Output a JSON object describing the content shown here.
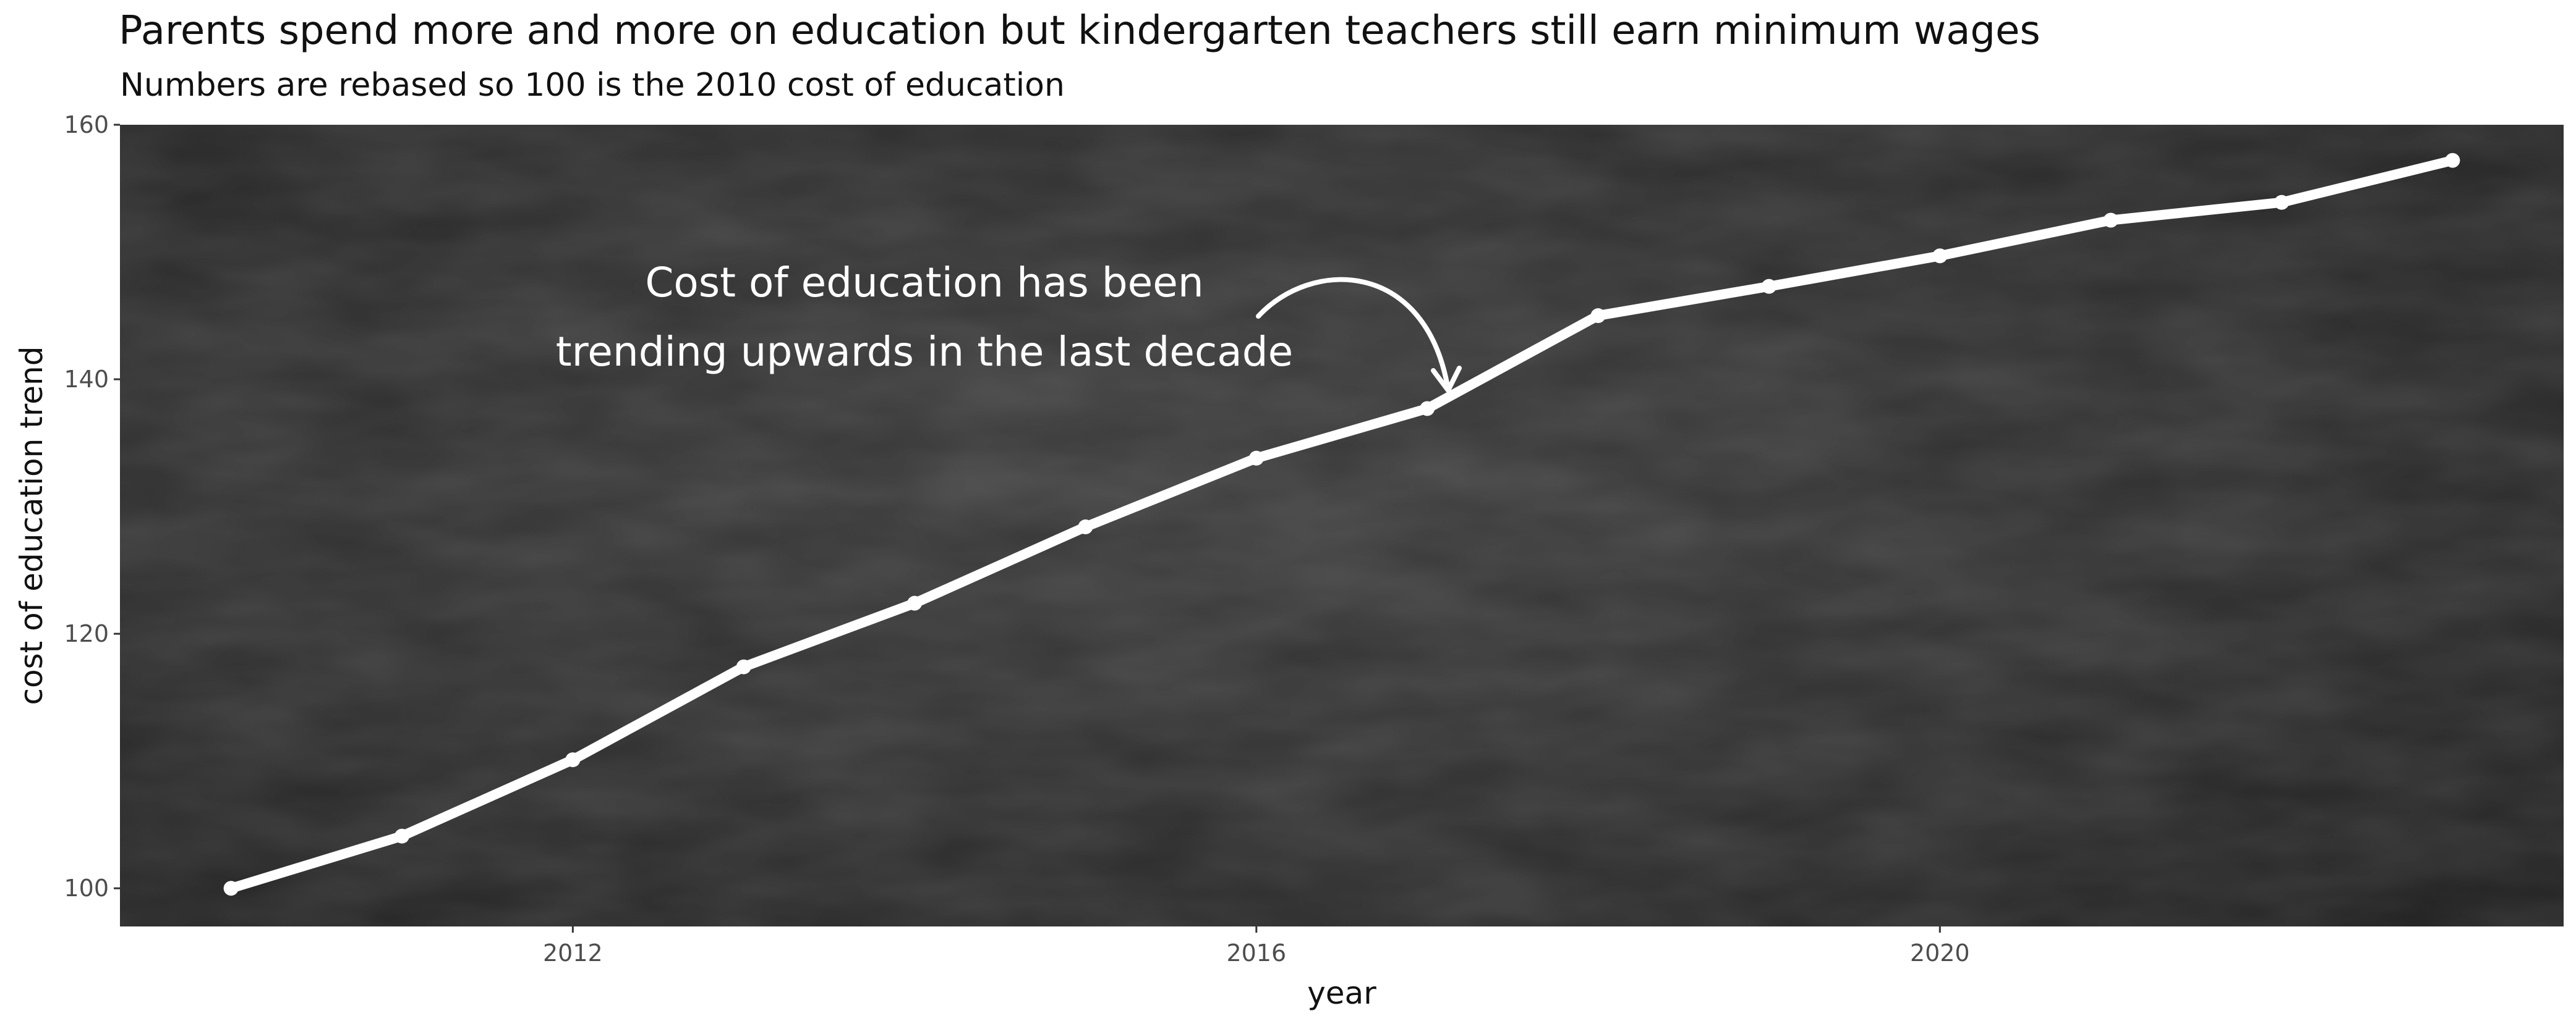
{
  "chart_data": {
    "type": "line",
    "title": "Parents spend more and more on education but kindergarten teachers still earn minimum wages",
    "subtitle": "Numbers are rebased so 100 is the 2010 cost of education",
    "xlabel": "year",
    "ylabel": "cost of education trend",
    "xlim": [
      2009.35,
      2023.65
    ],
    "ylim": [
      97.0,
      160.0
    ],
    "x_ticks": [
      2012,
      2016,
      2020
    ],
    "y_ticks": [
      100,
      120,
      140,
      160
    ],
    "grid": false,
    "legend": "none",
    "background": "chalkboard",
    "colors": {
      "line": "#ffffff",
      "panel_dark": "#1e1e1e",
      "panel_light": "#3b3b3b"
    },
    "series": [
      {
        "x": [
          2010,
          2011,
          2012,
          2013,
          2014,
          2015,
          2016,
          2017,
          2018,
          2019,
          2020,
          2021,
          2022,
          2023
        ],
        "values": [
          100.0,
          104.1,
          110.1,
          117.4,
          122.4,
          128.4,
          133.8,
          137.7,
          145.0,
          147.3,
          149.7,
          152.5,
          153.9,
          157.2
        ]
      }
    ],
    "annotations": [
      {
        "lines": [
          "Cost of education has been",
          "trending upwards in the last decade"
        ],
        "points_to": {
          "x": 2017,
          "y": 137.7
        }
      }
    ]
  }
}
